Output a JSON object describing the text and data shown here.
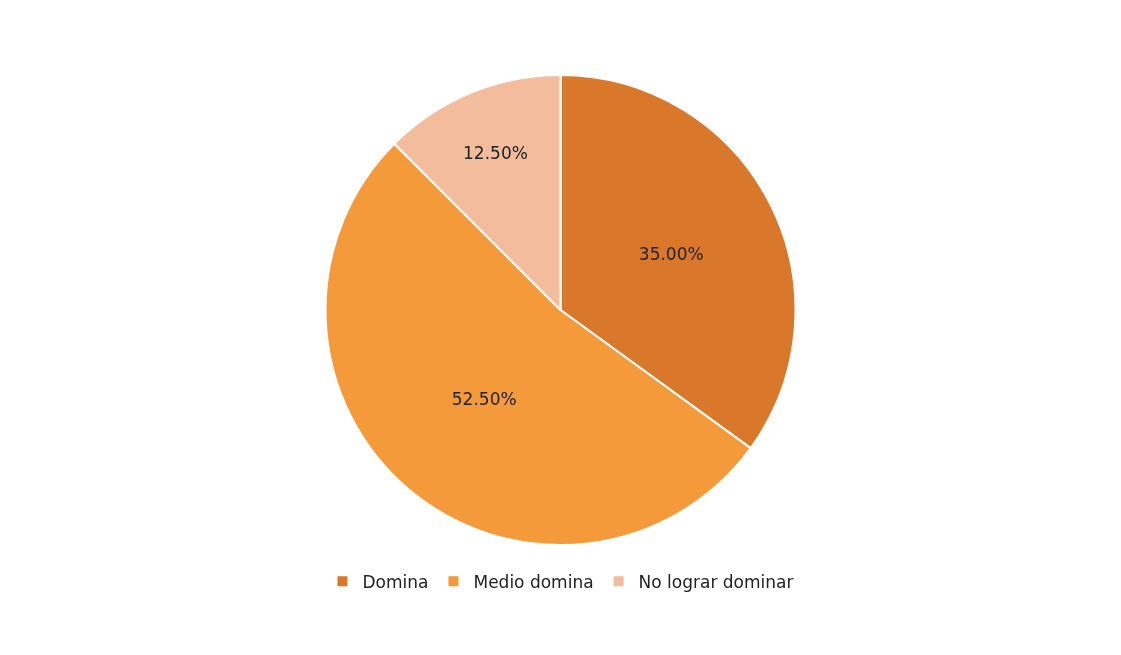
{
  "chart_data": {
    "type": "pie",
    "categories": [
      "Domina",
      "Medio domina",
      "No lograr dominar"
    ],
    "values": [
      35,
      52.5,
      12.5
    ],
    "colors": [
      "#d9782a",
      "#f59a3a",
      "#f3bc9c"
    ],
    "value_labels": [
      "35.00%",
      "52.50%",
      "12.50%"
    ],
    "legend": "bottom"
  }
}
